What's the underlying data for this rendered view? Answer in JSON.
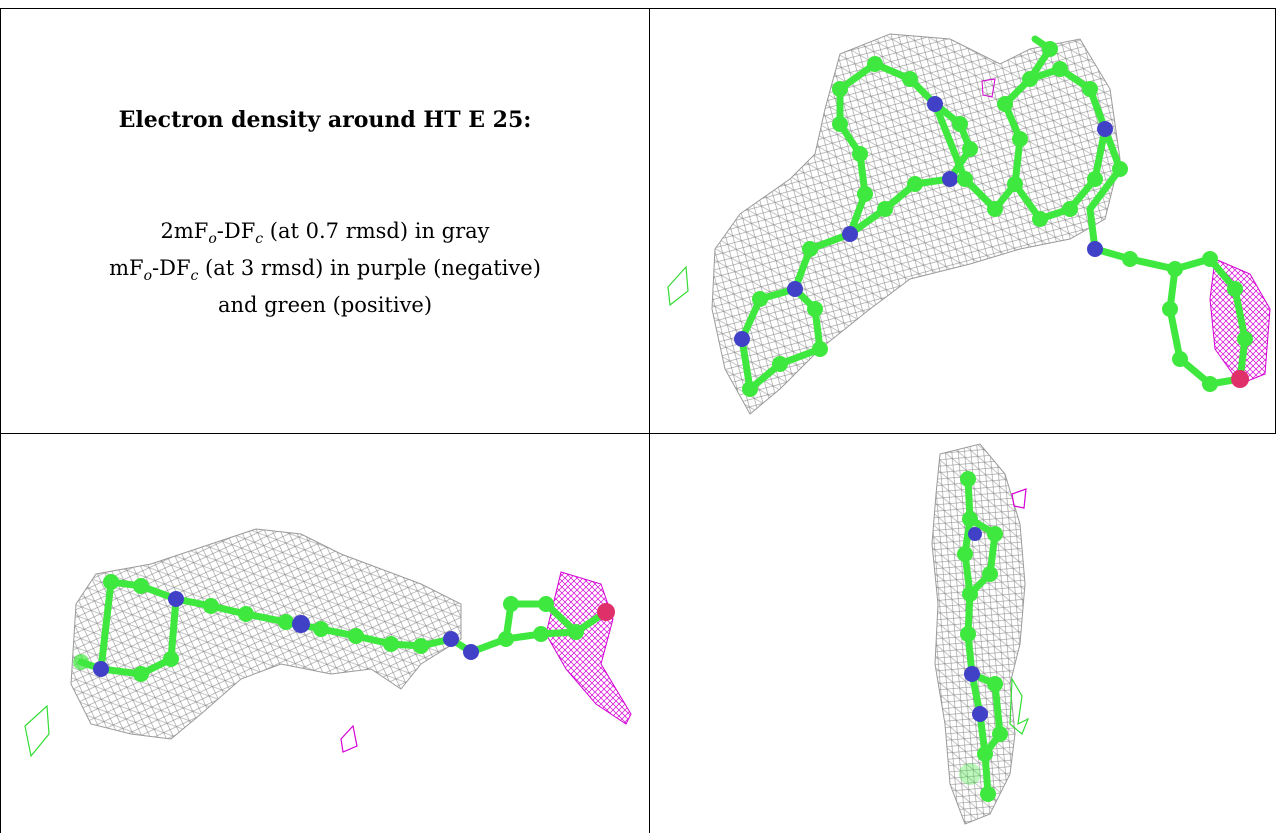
{
  "caption": {
    "title": "Electron density around HT E 25:",
    "line1": {
      "pre": "2mF",
      "sub1": "o",
      "mid": "-DF",
      "sub2": "c",
      "post": " (at 0.7 rmsd) in gray"
    },
    "line2": {
      "pre": "mF",
      "sub1": "o",
      "mid": "-DF",
      "sub2": "c",
      "post": " (at 3 rmsd) in purple (negative)"
    },
    "line3": "and green (positive)"
  },
  "colors": {
    "carbon": "#3fe83f",
    "nitrogen": "#4141c8",
    "oxygen": "#e0306a",
    "mesh_gray": "#8c8c8c",
    "mesh_negative": "#d400d4",
    "mesh_positive": "#33dd33"
  },
  "panels": [
    "view-top-right",
    "view-bottom-left",
    "view-bottom-right"
  ]
}
